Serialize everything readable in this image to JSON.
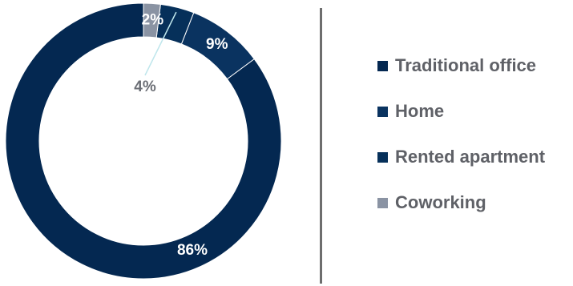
{
  "chart_data": {
    "type": "pie",
    "variant": "donut",
    "categories": [
      "Traditional office",
      "Home",
      "Rented apartment",
      "Coworking"
    ],
    "values": [
      86,
      9,
      4,
      2
    ],
    "value_labels": [
      "86%",
      "9%",
      "4%",
      "2%"
    ],
    "colors": [
      "#042851",
      "#0a3360",
      "#06305a",
      "#8a93a3"
    ],
    "label_colors": [
      "#ffffff",
      "#ffffff",
      "#6b6e75",
      "#ffffff"
    ],
    "legend_placement": "right",
    "title": ""
  },
  "legend": {
    "items": [
      {
        "label": "Traditional office",
        "color": "#042851"
      },
      {
        "label": "Home",
        "color": "#0a3360"
      },
      {
        "label": "Rented apartment",
        "color": "#06305a"
      },
      {
        "label": "Coworking",
        "color": "#8a93a3"
      }
    ]
  }
}
